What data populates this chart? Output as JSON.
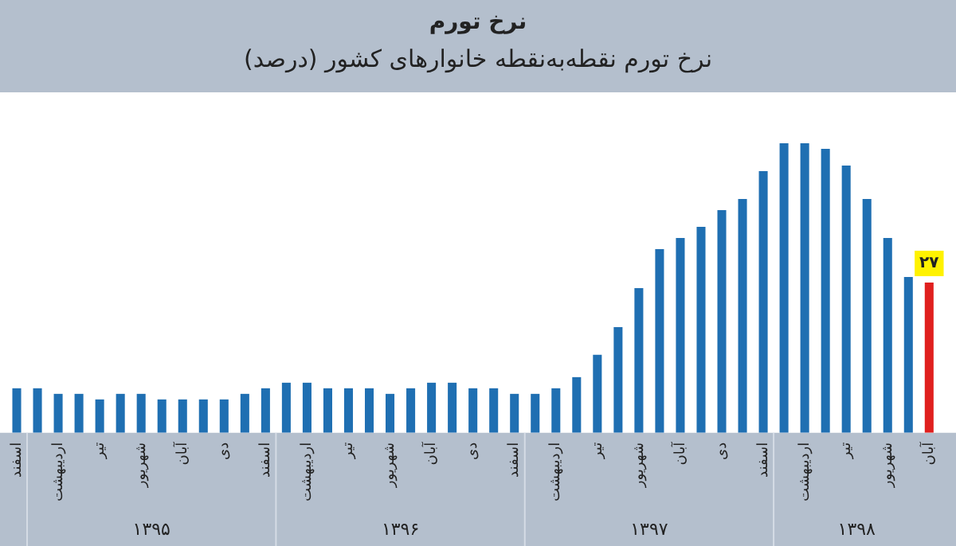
{
  "chart_data": {
    "type": "bar",
    "title": "نرخ تورم",
    "subtitle": "نرخ تورم نقطه‌به‌نقطه خانوارهای کشور (درصد)",
    "categories": [
      "اسفند",
      null,
      "اردیبهشت",
      null,
      "تیر",
      null,
      "شهریور",
      null,
      "آبان",
      null,
      "دی",
      null,
      "اسفند",
      null,
      "اردیبهشت",
      null,
      "تیر",
      null,
      "شهریور",
      null,
      "آبان",
      null,
      "دی",
      null,
      "اسفند",
      null,
      "اردیبهشت",
      null,
      "تیر",
      null,
      "شهریور",
      null,
      "آبان",
      null,
      "دی",
      null,
      "اسفند",
      null,
      "اردیبهشت",
      null,
      "تیر",
      null,
      "شهریور",
      null,
      "آبان"
    ],
    "values": [
      8,
      8,
      7,
      7,
      6,
      7,
      7,
      6,
      6,
      6,
      6,
      7,
      8,
      9,
      9,
      8,
      8,
      8,
      7,
      8,
      9,
      9,
      8,
      8,
      7,
      7,
      8,
      10,
      14,
      19,
      26,
      33,
      35,
      37,
      40,
      42,
      47,
      52,
      52,
      51,
      48,
      42,
      35,
      28,
      27
    ],
    "colors": [
      "#1f6fb2",
      "#1f6fb2",
      "#1f6fb2",
      "#1f6fb2",
      "#1f6fb2",
      "#1f6fb2",
      "#1f6fb2",
      "#1f6fb2",
      "#1f6fb2",
      "#1f6fb2",
      "#1f6fb2",
      "#1f6fb2",
      "#1f6fb2",
      "#1f6fb2",
      "#1f6fb2",
      "#1f6fb2",
      "#1f6fb2",
      "#1f6fb2",
      "#1f6fb2",
      "#1f6fb2",
      "#1f6fb2",
      "#1f6fb2",
      "#1f6fb2",
      "#1f6fb2",
      "#1f6fb2",
      "#1f6fb2",
      "#1f6fb2",
      "#1f6fb2",
      "#1f6fb2",
      "#1f6fb2",
      "#1f6fb2",
      "#1f6fb2",
      "#1f6fb2",
      "#1f6fb2",
      "#1f6fb2",
      "#1f6fb2",
      "#1f6fb2",
      "#1f6fb2",
      "#1f6fb2",
      "#1f6fb2",
      "#1f6fb2",
      "#1f6fb2",
      "#1f6fb2",
      "#1f6fb2",
      "#e0201e"
    ],
    "value_labels": [
      null,
      null,
      null,
      null,
      null,
      null,
      null,
      null,
      null,
      null,
      null,
      null,
      null,
      null,
      null,
      null,
      null,
      null,
      null,
      null,
      null,
      null,
      null,
      null,
      null,
      null,
      null,
      null,
      null,
      null,
      null,
      null,
      null,
      null,
      null,
      null,
      null,
      null,
      null,
      null,
      null,
      null,
      null,
      null,
      "۲۷"
    ],
    "annotations": [
      "۱۳۹۵",
      "۱۳۹۶",
      "۱۳۹۷",
      "۱۳۹۸"
    ],
    "grid": false,
    "legend": false
  }
}
